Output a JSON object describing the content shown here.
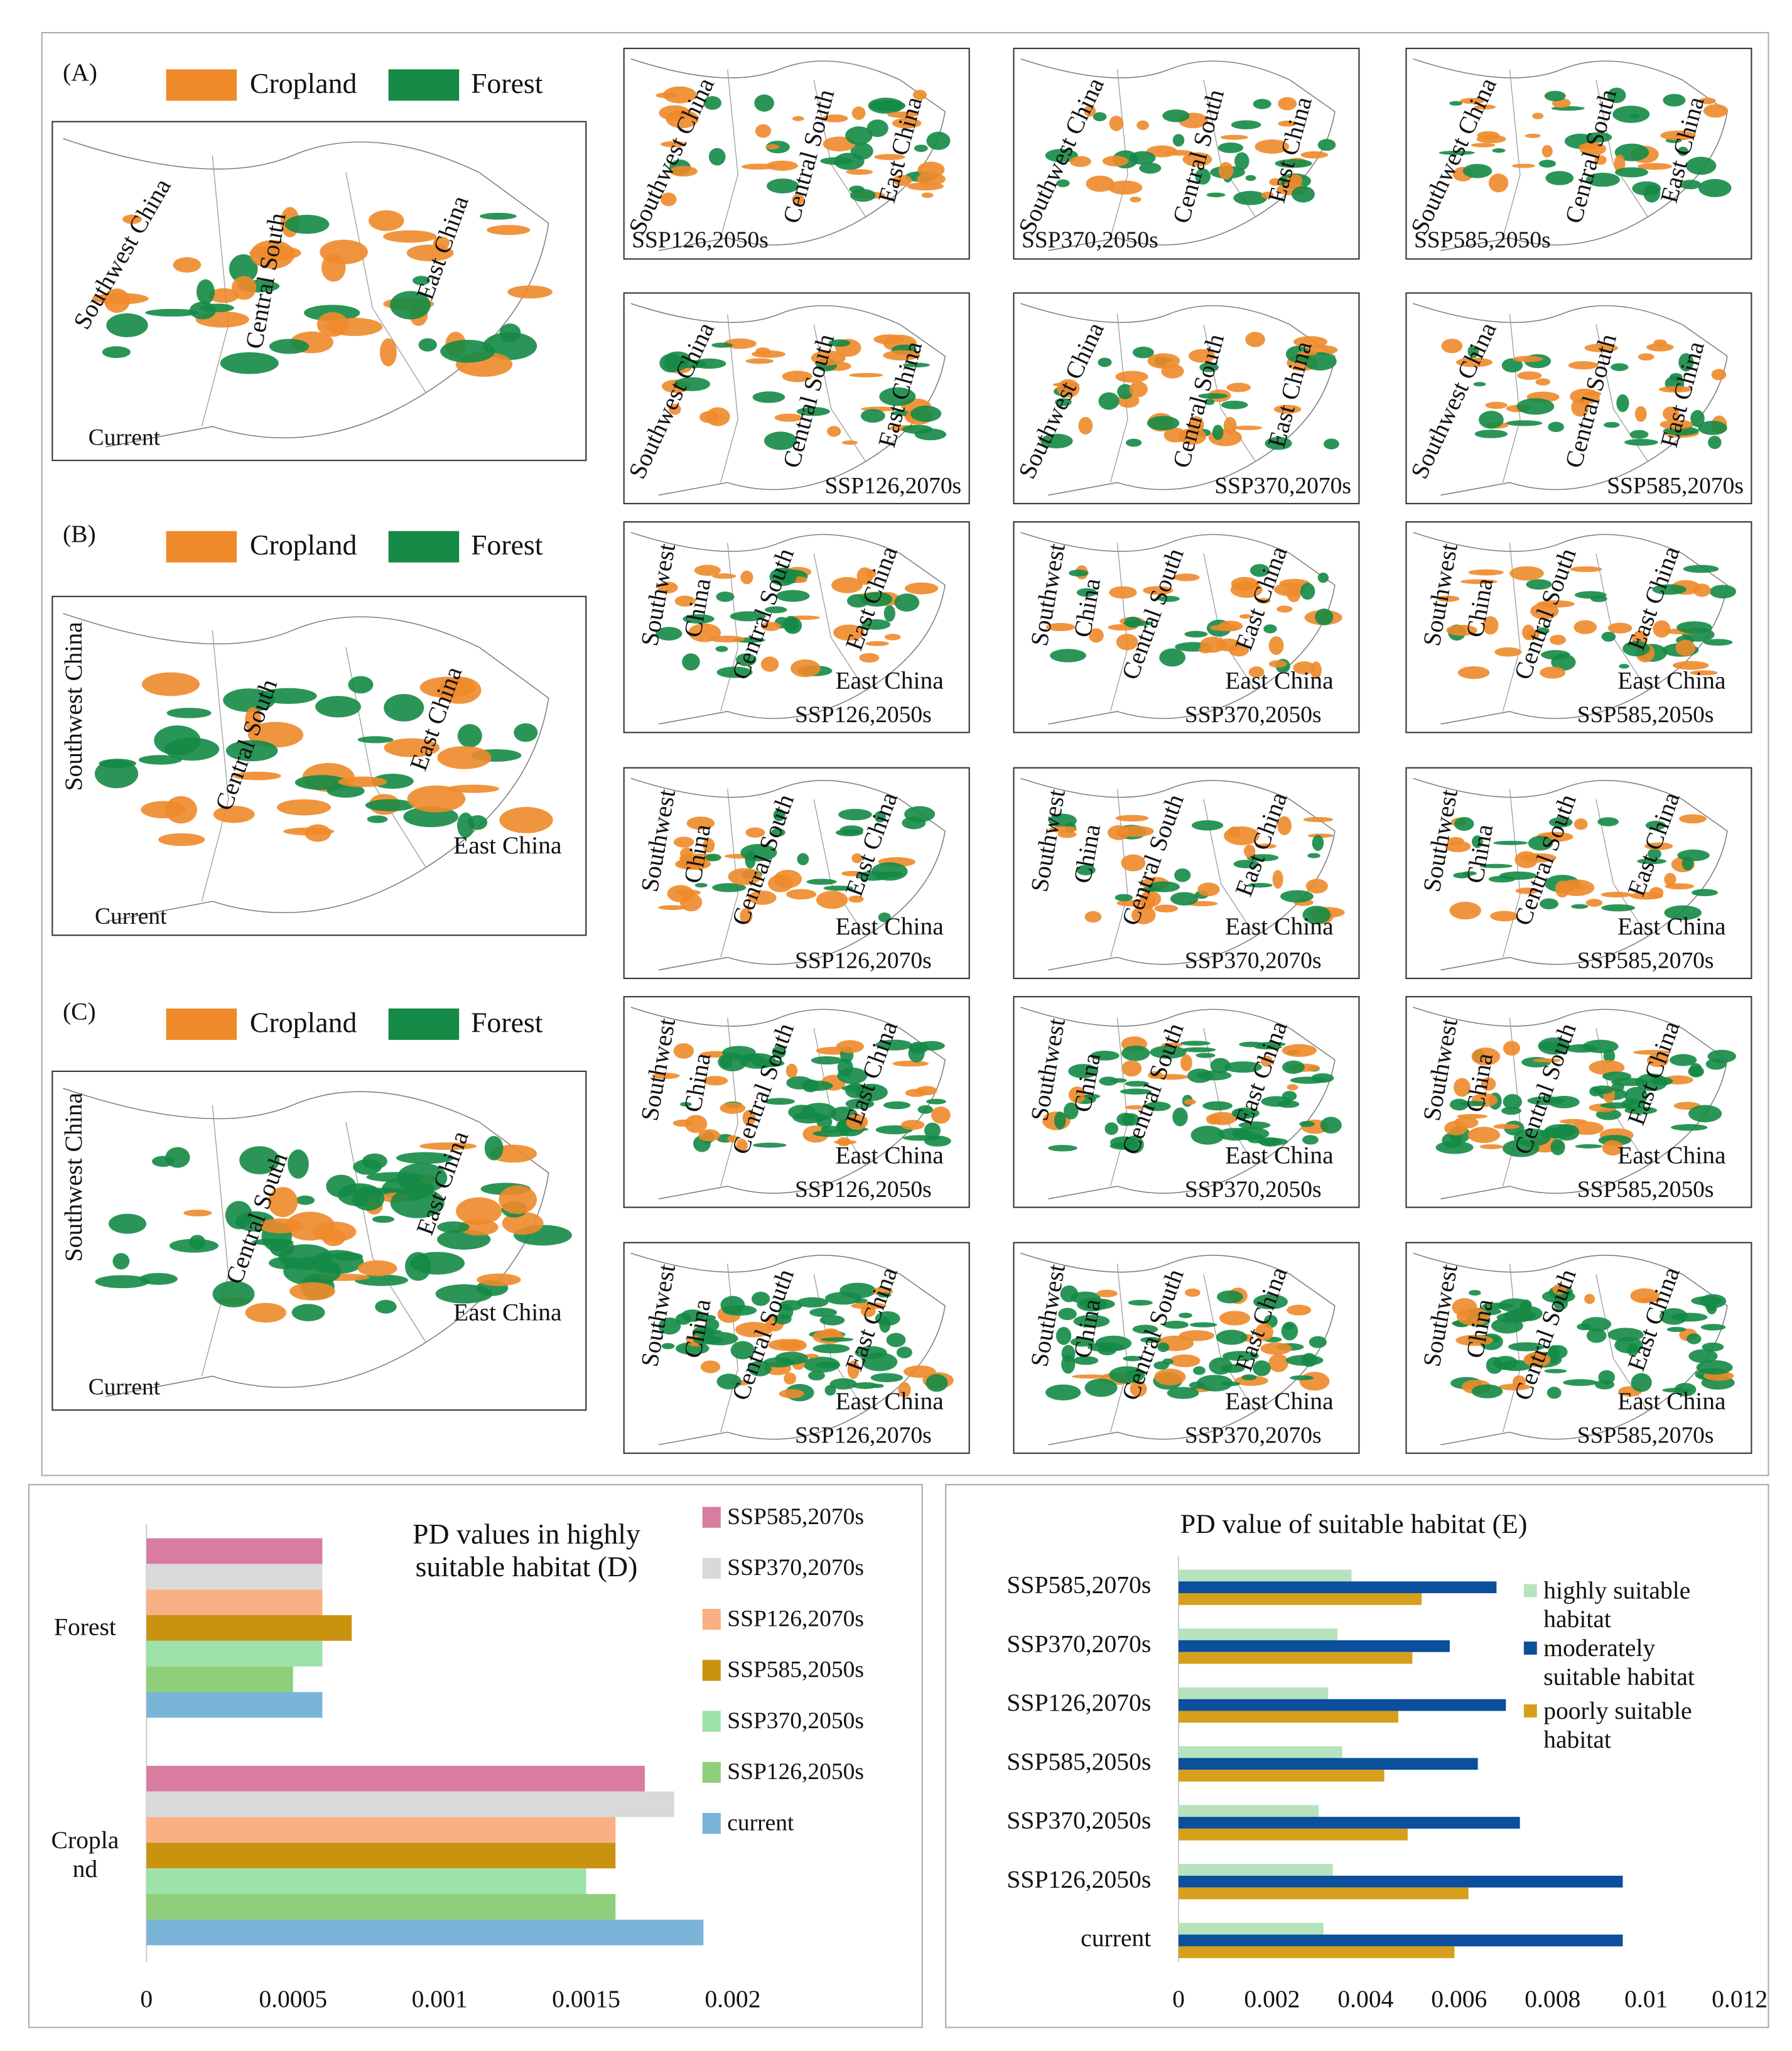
{
  "figure_panels": [
    {
      "letter": "(A)",
      "legend": [
        {
          "name": "Cropland",
          "color": "#ee8a2a"
        },
        {
          "name": "Forest",
          "color": "#148a46"
        }
      ],
      "current": {
        "labels": [
          "Southwest China",
          "Central South",
          "East China"
        ],
        "caption": "Current"
      },
      "scenarios": [
        {
          "labels": [
            "Southwest China",
            "Central South",
            "East China"
          ],
          "caption": "SSP126,2050s"
        },
        {
          "labels": [
            "Southwest China",
            "Central South",
            "East China"
          ],
          "caption": "SSP370,2050s"
        },
        {
          "labels": [
            "Southwest China",
            "Central South",
            "East China"
          ],
          "caption": "SSP585,2050s"
        },
        {
          "labels": [
            "Southwest China",
            "Central South",
            "East China"
          ],
          "caption": "SSP126,2070s"
        },
        {
          "labels": [
            "Southwest China",
            "Central South",
            "East China"
          ],
          "caption": "SSP370,2070s"
        },
        {
          "labels": [
            "Southwest China",
            "Central South",
            "East China"
          ],
          "caption": "SSP585,2070s"
        }
      ]
    },
    {
      "letter": "(B)",
      "legend": [
        {
          "name": "Cropland",
          "color": "#ee8a2a"
        },
        {
          "name": "Forest",
          "color": "#148a46"
        }
      ],
      "current": {
        "labels": [
          "Southwest China",
          "Central South",
          "East China",
          "East China"
        ],
        "caption": "Current"
      },
      "scenarios": [
        {
          "labels": [
            "Southwest",
            "China",
            "Central South",
            "East China",
            "East China"
          ],
          "caption": "SSP126,2050s"
        },
        {
          "labels": [
            "Southwest",
            "China",
            "Central South",
            "East China",
            "East China"
          ],
          "caption": "SSP370,2050s"
        },
        {
          "labels": [
            "Southwest",
            "China",
            "Central South",
            "East China",
            "East China"
          ],
          "caption": "SSP585,2050s"
        },
        {
          "labels": [
            "Southwest",
            "China",
            "Central South",
            "East China",
            "East China"
          ],
          "caption": "SSP126,2070s"
        },
        {
          "labels": [
            "Southwest",
            "China",
            "Central South",
            "East China",
            "East China"
          ],
          "caption": "SSP370,2070s"
        },
        {
          "labels": [
            "Southwest",
            "China",
            "Central South",
            "East China",
            "East China"
          ],
          "caption": "SSP585,2070s"
        }
      ]
    },
    {
      "letter": "(C)",
      "legend": [
        {
          "name": "Cropland",
          "color": "#ee8a2a"
        },
        {
          "name": "Forest",
          "color": "#148a46"
        }
      ],
      "current": {
        "labels": [
          "Southwest China",
          "Central South",
          "East China",
          "East China"
        ],
        "caption": "Current"
      },
      "scenarios": [
        {
          "labels": [
            "Southwest",
            "China",
            "Central South",
            "East China",
            "East China"
          ],
          "caption": "SSP126,2050s"
        },
        {
          "labels": [
            "Southwest",
            "China",
            "Central South",
            "East China",
            "East China"
          ],
          "caption": "SSP370,2050s"
        },
        {
          "labels": [
            "Southwest",
            "China",
            "Central South",
            "East China",
            "East China"
          ],
          "caption": "SSP585,2050s"
        },
        {
          "labels": [
            "Southwest",
            "China",
            "Central South",
            "East China",
            "East China"
          ],
          "caption": "SSP126,2070s"
        },
        {
          "labels": [
            "Southwest",
            "China",
            "Central South",
            "East China",
            "East China"
          ],
          "caption": "SSP370,2070s"
        },
        {
          "labels": [
            "Southwest",
            "China",
            "Central South",
            "East China",
            "East China"
          ],
          "caption": "SSP585,2070s"
        }
      ]
    }
  ],
  "chart_data": [
    {
      "type": "bar",
      "orientation": "horizontal",
      "title": "PD values in highly suitable habitat (D)",
      "categories": [
        "Forest",
        "Cropland"
      ],
      "series": [
        {
          "name": "SSP585,2070s",
          "color": "#d87ca0",
          "values": [
            0.0006,
            0.0017
          ]
        },
        {
          "name": "SSP370,2070s",
          "color": "#d9d9d9",
          "values": [
            0.0006,
            0.0018
          ]
        },
        {
          "name": "SSP126,2070s",
          "color": "#f8b084",
          "values": [
            0.0006,
            0.0016
          ]
        },
        {
          "name": "SSP585,2050s",
          "color": "#c9930f",
          "values": [
            0.0007,
            0.0016
          ]
        },
        {
          "name": "SSP370,2050s",
          "color": "#9de2a9",
          "values": [
            0.0006,
            0.0015
          ]
        },
        {
          "name": "SSP126,2050s",
          "color": "#8fcf7b",
          "values": [
            0.0005,
            0.0016
          ]
        },
        {
          "name": "current",
          "color": "#7ab4d8",
          "values": [
            0.0006,
            0.0019
          ]
        }
      ],
      "xlim": [
        0,
        0.0022
      ],
      "xticks": [
        0,
        0.0005,
        0.001,
        0.0015,
        0.002
      ],
      "grid": false,
      "legend": "right"
    },
    {
      "type": "bar",
      "orientation": "horizontal",
      "title": "PD value of suitable habitat (E)",
      "categories": [
        "SSP585,2070s",
        "SSP370,2070s",
        "SSP126,2070s",
        "SSP585,2050s",
        "SSP370,2050s",
        "SSP126,2050s",
        "current"
      ],
      "series": [
        {
          "name": "highly suitable habitat",
          "color": "#b6e3bd",
          "values": [
            0.0037,
            0.0034,
            0.0032,
            0.0035,
            0.003,
            0.0033,
            0.0031
          ]
        },
        {
          "name": "moderately suitable habitat",
          "color": "#0c4f9c",
          "values": [
            0.0068,
            0.0058,
            0.007,
            0.0064,
            0.0073,
            0.0095,
            0.0095
          ]
        },
        {
          "name": "poorly suitable habitat",
          "color": "#d6a01c",
          "values": [
            0.0052,
            0.005,
            0.0047,
            0.0044,
            0.0049,
            0.0062,
            0.0059
          ]
        }
      ],
      "xlim": [
        0,
        0.012
      ],
      "xticks": [
        0,
        0.002,
        0.004,
        0.006,
        0.008,
        0.01,
        0.012
      ],
      "grid": false,
      "legend": "right"
    }
  ]
}
